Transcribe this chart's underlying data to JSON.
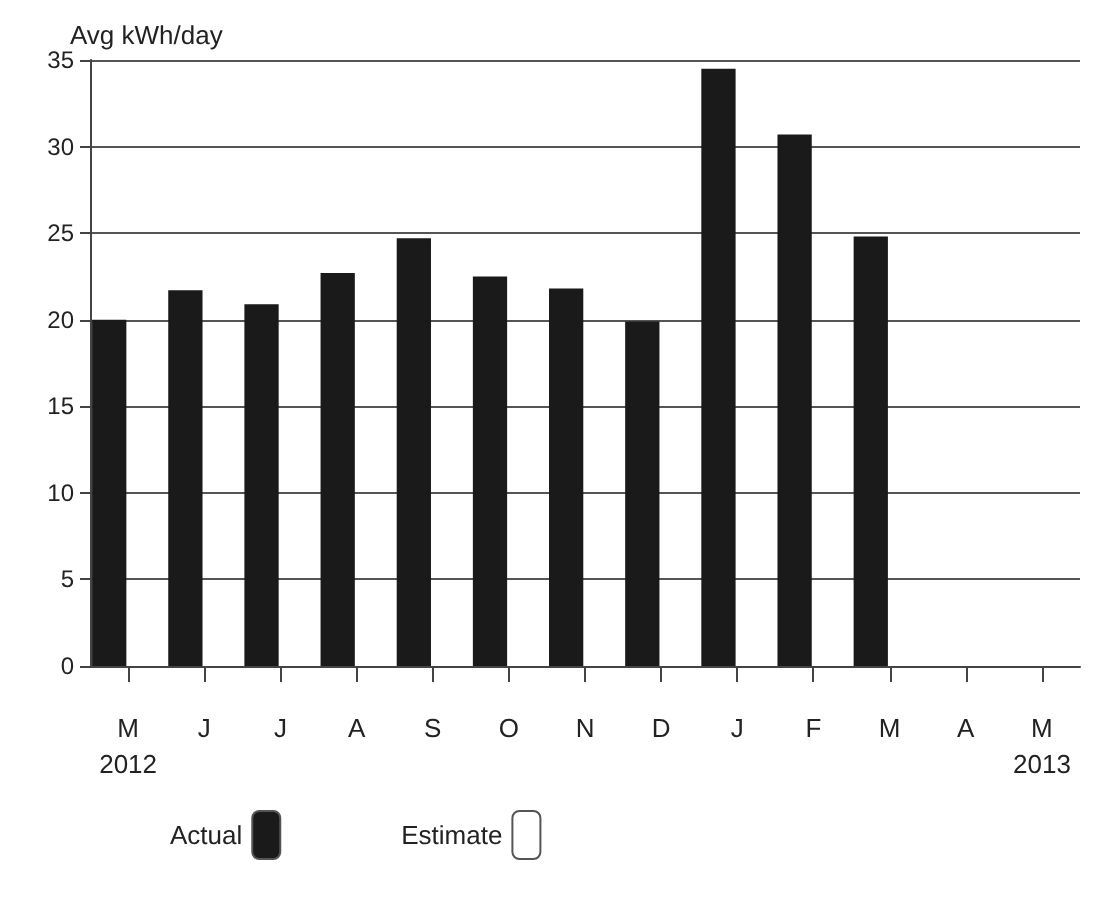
{
  "chart_data": {
    "type": "bar",
    "ylabel": "Avg kWh/day",
    "categories": [
      "M\n2012",
      "J",
      "J",
      "A",
      "S",
      "O",
      "N",
      "D",
      "J",
      "F",
      "M",
      "A",
      "M\n2013"
    ],
    "series": [
      {
        "name": "Actual",
        "color": "#1a1a1a",
        "values": [
          20,
          21.7,
          20.9,
          22.7,
          24.7,
          22.5,
          21.8,
          19.9,
          34.5,
          30.7,
          24.8,
          null,
          null
        ]
      },
      {
        "name": "Estimate",
        "color": "#ffffff",
        "values": [
          null,
          null,
          null,
          null,
          null,
          null,
          null,
          null,
          null,
          null,
          null,
          null,
          null
        ]
      }
    ],
    "ylim": [
      0,
      35
    ],
    "yticks": [
      0,
      5,
      10,
      15,
      20,
      25,
      30,
      35
    ],
    "grid": "y",
    "legend": "bottom"
  }
}
